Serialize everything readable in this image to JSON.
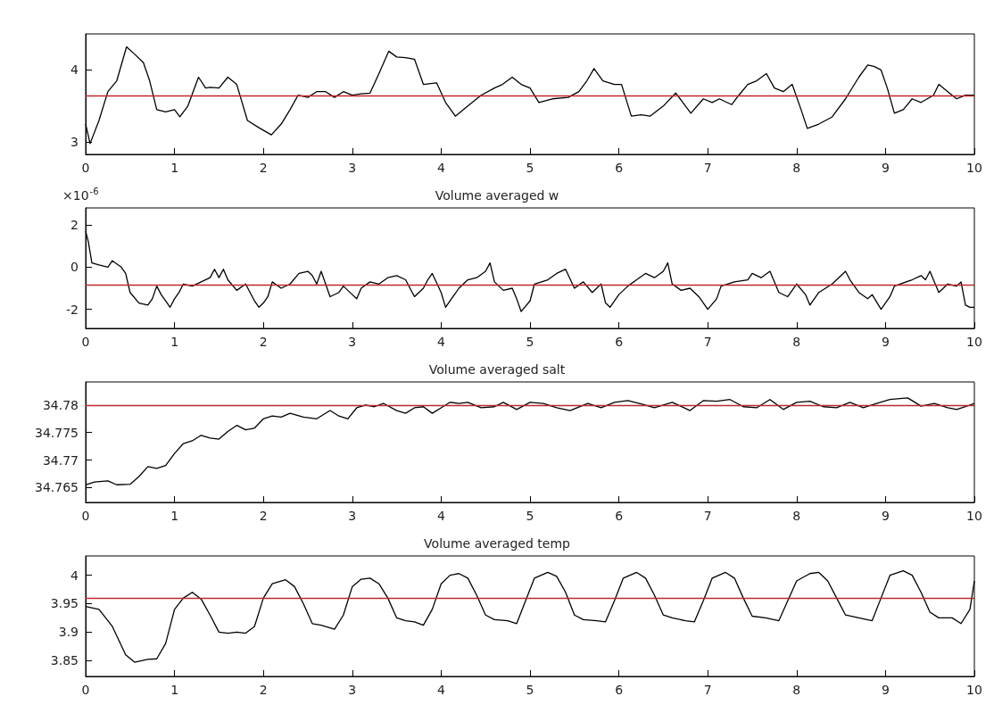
{
  "chart_data": [
    {
      "type": "line",
      "xlim": [
        0,
        10
      ],
      "xticks": [
        0,
        1,
        2,
        3,
        4,
        5,
        6,
        7,
        8,
        9,
        10
      ],
      "ylim": [
        2.83,
        4.5
      ],
      "yticks": [
        3,
        4
      ],
      "ref_lines": [
        {
          "axis": "y",
          "value": 3.64,
          "color": "#c0282d"
        }
      ],
      "series": [
        {
          "color": "#000000",
          "x": [
            0,
            0.05,
            0.15,
            0.25,
            0.35,
            0.46,
            0.55,
            0.65,
            0.72,
            0.8,
            0.9,
            1.0,
            1.06,
            1.15,
            1.27,
            1.35,
            1.4,
            1.5,
            1.6,
            1.7,
            1.82,
            1.95,
            2.09,
            2.2,
            2.3,
            2.39,
            2.5,
            2.6,
            2.7,
            2.8,
            2.9,
            3.0,
            3.1,
            3.2,
            3.3,
            3.41,
            3.5,
            3.6,
            3.7,
            3.8,
            3.95,
            4.05,
            4.16,
            4.3,
            4.45,
            4.6,
            4.69,
            4.8,
            4.9,
            5.0,
            5.1,
            5.25,
            5.43,
            5.55,
            5.64,
            5.72,
            5.82,
            5.95,
            6.03,
            6.14,
            6.25,
            6.35,
            6.5,
            6.64,
            6.72,
            6.81,
            6.95,
            7.05,
            7.13,
            7.27,
            7.35,
            7.45,
            7.55,
            7.66,
            7.75,
            7.85,
            7.95,
            8.05,
            8.12,
            8.25,
            8.4,
            8.55,
            8.7,
            8.8,
            8.87,
            8.95,
            9.02,
            9.1,
            9.2,
            9.3,
            9.4,
            9.54,
            9.6,
            9.7,
            9.8,
            9.9,
            10
          ],
          "values": [
            3.25,
            2.98,
            3.3,
            3.7,
            3.85,
            4.32,
            4.22,
            4.1,
            3.85,
            3.45,
            3.42,
            3.45,
            3.35,
            3.5,
            3.9,
            3.75,
            3.76,
            3.75,
            3.9,
            3.8,
            3.3,
            3.2,
            3.1,
            3.25,
            3.45,
            3.65,
            3.62,
            3.7,
            3.7,
            3.62,
            3.7,
            3.65,
            3.67,
            3.68,
            3.95,
            4.26,
            4.18,
            4.17,
            4.15,
            3.8,
            3.82,
            3.55,
            3.36,
            3.5,
            3.65,
            3.75,
            3.8,
            3.9,
            3.8,
            3.75,
            3.55,
            3.6,
            3.62,
            3.7,
            3.85,
            4.02,
            3.85,
            3.8,
            3.8,
            3.36,
            3.38,
            3.36,
            3.5,
            3.68,
            3.55,
            3.4,
            3.6,
            3.55,
            3.6,
            3.52,
            3.65,
            3.8,
            3.85,
            3.95,
            3.75,
            3.7,
            3.8,
            3.45,
            3.19,
            3.25,
            3.35,
            3.6,
            3.9,
            4.07,
            4.05,
            4.0,
            3.75,
            3.4,
            3.45,
            3.6,
            3.55,
            3.65,
            3.8,
            3.7,
            3.6,
            3.65,
            3.65
          ]
        }
      ]
    },
    {
      "type": "line",
      "title": "Volume averaged w",
      "annotations": [
        "×10$^{-6}$"
      ],
      "xlim": [
        0,
        10
      ],
      "xticks": [
        0,
        1,
        2,
        3,
        4,
        5,
        6,
        7,
        8,
        9,
        10
      ],
      "ylim": [
        -2.9,
        2.8
      ],
      "yticks": [
        -2,
        0,
        2
      ],
      "ref_lines": [
        {
          "axis": "y",
          "value": -0.85,
          "color": "#c0282d"
        }
      ],
      "series": [
        {
          "color": "#000000",
          "x": [
            0,
            0.03,
            0.07,
            0.15,
            0.25,
            0.3,
            0.4,
            0.45,
            0.5,
            0.6,
            0.7,
            0.75,
            0.8,
            0.85,
            0.9,
            0.95,
            1.0,
            1.05,
            1.1,
            1.2,
            1.3,
            1.4,
            1.45,
            1.5,
            1.55,
            1.6,
            1.7,
            1.8,
            1.9,
            1.95,
            2.0,
            2.05,
            2.1,
            2.2,
            2.3,
            2.4,
            2.5,
            2.55,
            2.6,
            2.65,
            2.75,
            2.85,
            2.9,
            3.0,
            3.05,
            3.1,
            3.2,
            3.3,
            3.4,
            3.5,
            3.6,
            3.7,
            3.8,
            3.85,
            3.9,
            4.0,
            4.05,
            4.1,
            4.2,
            4.3,
            4.4,
            4.5,
            4.55,
            4.6,
            4.7,
            4.8,
            4.85,
            4.9,
            5.0,
            5.05,
            5.2,
            5.3,
            5.4,
            5.5,
            5.6,
            5.7,
            5.8,
            5.85,
            5.9,
            6.0,
            6.1,
            6.2,
            6.3,
            6.4,
            6.5,
            6.55,
            6.6,
            6.7,
            6.8,
            6.9,
            7.0,
            7.1,
            7.15,
            7.3,
            7.45,
            7.5,
            7.6,
            7.7,
            7.8,
            7.9,
            8.0,
            8.1,
            8.15,
            8.25,
            8.4,
            8.5,
            8.55,
            8.6,
            8.7,
            8.8,
            8.85,
            8.95,
            9.05,
            9.1,
            9.3,
            9.4,
            9.45,
            9.5,
            9.55,
            9.6,
            9.7,
            9.8,
            9.85,
            9.9,
            9.95,
            10
          ],
          "values": [
            1.7,
            1.2,
            0.2,
            0.1,
            0.0,
            0.3,
            0.0,
            -0.3,
            -1.2,
            -1.7,
            -1.8,
            -1.5,
            -0.9,
            -1.3,
            -1.6,
            -1.9,
            -1.5,
            -1.2,
            -0.8,
            -0.9,
            -0.7,
            -0.5,
            -0.1,
            -0.5,
            -0.1,
            -0.6,
            -1.1,
            -0.8,
            -1.6,
            -1.9,
            -1.7,
            -1.4,
            -0.7,
            -1.0,
            -0.8,
            -0.3,
            -0.2,
            -0.4,
            -0.8,
            -0.2,
            -1.4,
            -1.2,
            -0.9,
            -1.3,
            -1.5,
            -1.0,
            -0.7,
            -0.8,
            -0.5,
            -0.4,
            -0.6,
            -1.4,
            -1.0,
            -0.6,
            -0.3,
            -1.2,
            -1.9,
            -1.6,
            -1.0,
            -0.6,
            -0.5,
            -0.2,
            0.2,
            -0.7,
            -1.1,
            -1.0,
            -1.5,
            -2.1,
            -1.6,
            -0.8,
            -0.6,
            -0.3,
            -0.1,
            -1.0,
            -0.7,
            -1.2,
            -0.8,
            -1.7,
            -1.9,
            -1.3,
            -0.9,
            -0.6,
            -0.3,
            -0.5,
            -0.2,
            0.2,
            -0.8,
            -1.1,
            -1.0,
            -1.4,
            -2.0,
            -1.5,
            -0.9,
            -0.7,
            -0.6,
            -0.3,
            -0.5,
            -0.2,
            -1.2,
            -1.4,
            -0.8,
            -1.3,
            -1.8,
            -1.2,
            -0.8,
            -0.4,
            -0.2,
            -0.6,
            -1.2,
            -1.5,
            -1.3,
            -2.0,
            -1.4,
            -0.9,
            -0.6,
            -0.4,
            -0.6,
            -0.2,
            -0.7,
            -1.2,
            -0.8,
            -0.9,
            -0.7,
            -1.8,
            -1.9,
            -1.9
          ]
        }
      ]
    },
    {
      "type": "line",
      "title": "Volume averaged salt",
      "xlim": [
        0,
        10
      ],
      "xticks": [
        0,
        1,
        2,
        3,
        4,
        5,
        6,
        7,
        8,
        9,
        10
      ],
      "ylim": [
        34.7623,
        34.7842
      ],
      "yticks": [
        34.765,
        34.77,
        34.775,
        34.78
      ],
      "ref_lines": [
        {
          "axis": "y",
          "value": 34.78,
          "color": "#c0282d"
        }
      ],
      "series": [
        {
          "color": "#000000",
          "x": [
            0,
            0.1,
            0.25,
            0.35,
            0.5,
            0.6,
            0.7,
            0.8,
            0.9,
            1.0,
            1.1,
            1.2,
            1.3,
            1.4,
            1.5,
            1.6,
            1.7,
            1.8,
            1.9,
            2.0,
            2.1,
            2.2,
            2.3,
            2.45,
            2.6,
            2.75,
            2.85,
            2.95,
            3.05,
            3.15,
            3.25,
            3.35,
            3.5,
            3.6,
            3.7,
            3.8,
            3.9,
            4.0,
            4.1,
            4.2,
            4.3,
            4.45,
            4.6,
            4.7,
            4.85,
            5.0,
            5.15,
            5.3,
            5.45,
            5.65,
            5.8,
            5.95,
            6.1,
            6.25,
            6.4,
            6.6,
            6.8,
            6.95,
            7.1,
            7.25,
            7.4,
            7.55,
            7.7,
            7.85,
            8.0,
            8.15,
            8.3,
            8.45,
            8.6,
            8.75,
            8.9,
            9.05,
            9.25,
            9.4,
            9.55,
            9.7,
            9.8,
            9.9,
            10
          ],
          "values": [
            34.7655,
            34.766,
            34.7662,
            34.7655,
            34.7656,
            34.767,
            34.7688,
            34.7685,
            34.769,
            34.7712,
            34.773,
            34.7735,
            34.7745,
            34.774,
            34.7738,
            34.7752,
            34.7763,
            34.7755,
            34.7758,
            34.7775,
            34.778,
            34.7778,
            34.7785,
            34.7778,
            34.7775,
            34.779,
            34.778,
            34.7775,
            34.7795,
            34.78,
            34.7797,
            34.7803,
            34.779,
            34.7785,
            34.7795,
            34.7797,
            34.7785,
            34.7795,
            34.7805,
            34.7803,
            34.7805,
            34.7795,
            34.7797,
            34.7805,
            34.7792,
            34.7805,
            34.7803,
            34.7795,
            34.779,
            34.7803,
            34.7795,
            34.7805,
            34.7808,
            34.7802,
            34.7795,
            34.7805,
            34.779,
            34.7808,
            34.7807,
            34.781,
            34.7797,
            34.7795,
            34.781,
            34.7792,
            34.7805,
            34.7807,
            34.7797,
            34.7795,
            34.7805,
            34.7795,
            34.7803,
            34.781,
            34.7813,
            34.7798,
            34.7803,
            34.7795,
            34.7792,
            34.7797,
            34.7803
          ]
        }
      ]
    },
    {
      "type": "line",
      "title": "Volume averaged temp",
      "xlim": [
        0,
        10
      ],
      "xticks": [
        0,
        1,
        2,
        3,
        4,
        5,
        6,
        7,
        8,
        9,
        10
      ],
      "ylim": [
        3.822,
        4.034
      ],
      "yticks": [
        3.85,
        3.9,
        3.95,
        4
      ],
      "ref_lines": [
        {
          "axis": "y",
          "value": 3.96,
          "color": "#c0282d"
        }
      ],
      "series": [
        {
          "color": "#000000",
          "x": [
            0,
            0.15,
            0.3,
            0.45,
            0.55,
            0.7,
            0.8,
            0.9,
            1.0,
            1.1,
            1.2,
            1.3,
            1.4,
            1.5,
            1.6,
            1.7,
            1.8,
            1.9,
            2.0,
            2.1,
            2.25,
            2.35,
            2.45,
            2.55,
            2.65,
            2.8,
            2.9,
            3.0,
            3.1,
            3.2,
            3.3,
            3.4,
            3.5,
            3.6,
            3.7,
            3.8,
            3.9,
            4.0,
            4.1,
            4.2,
            4.3,
            4.4,
            4.5,
            4.6,
            4.75,
            4.85,
            4.95,
            5.05,
            5.2,
            5.3,
            5.4,
            5.5,
            5.6,
            5.75,
            5.85,
            5.95,
            6.05,
            6.2,
            6.3,
            6.4,
            6.5,
            6.6,
            6.75,
            6.85,
            6.95,
            7.05,
            7.2,
            7.3,
            7.4,
            7.5,
            7.65,
            7.8,
            7.9,
            8.0,
            8.15,
            8.25,
            8.35,
            8.45,
            8.55,
            8.7,
            8.85,
            8.95,
            9.05,
            9.2,
            9.3,
            9.4,
            9.5,
            9.6,
            9.75,
            9.85,
            9.95,
            10
          ],
          "values": [
            3.945,
            3.94,
            3.91,
            3.86,
            3.847,
            3.852,
            3.853,
            3.88,
            3.94,
            3.96,
            3.97,
            3.958,
            3.93,
            3.9,
            3.898,
            3.9,
            3.898,
            3.91,
            3.96,
            3.985,
            3.992,
            3.98,
            3.95,
            3.915,
            3.912,
            3.905,
            3.93,
            3.98,
            3.993,
            3.995,
            3.985,
            3.96,
            3.925,
            3.92,
            3.918,
            3.912,
            3.94,
            3.985,
            4.0,
            4.003,
            3.995,
            3.965,
            3.93,
            3.922,
            3.92,
            3.915,
            3.955,
            3.995,
            4.005,
            3.998,
            3.97,
            3.93,
            3.922,
            3.92,
            3.918,
            3.955,
            3.995,
            4.005,
            3.995,
            3.965,
            3.93,
            3.925,
            3.92,
            3.918,
            3.955,
            3.995,
            4.005,
            3.995,
            3.96,
            3.928,
            3.925,
            3.92,
            3.955,
            3.99,
            4.003,
            4.005,
            3.99,
            3.96,
            3.93,
            3.925,
            3.92,
            3.96,
            4.0,
            4.008,
            4.0,
            3.97,
            3.935,
            3.925,
            3.925,
            3.915,
            3.94,
            3.99
          ]
        }
      ]
    }
  ]
}
